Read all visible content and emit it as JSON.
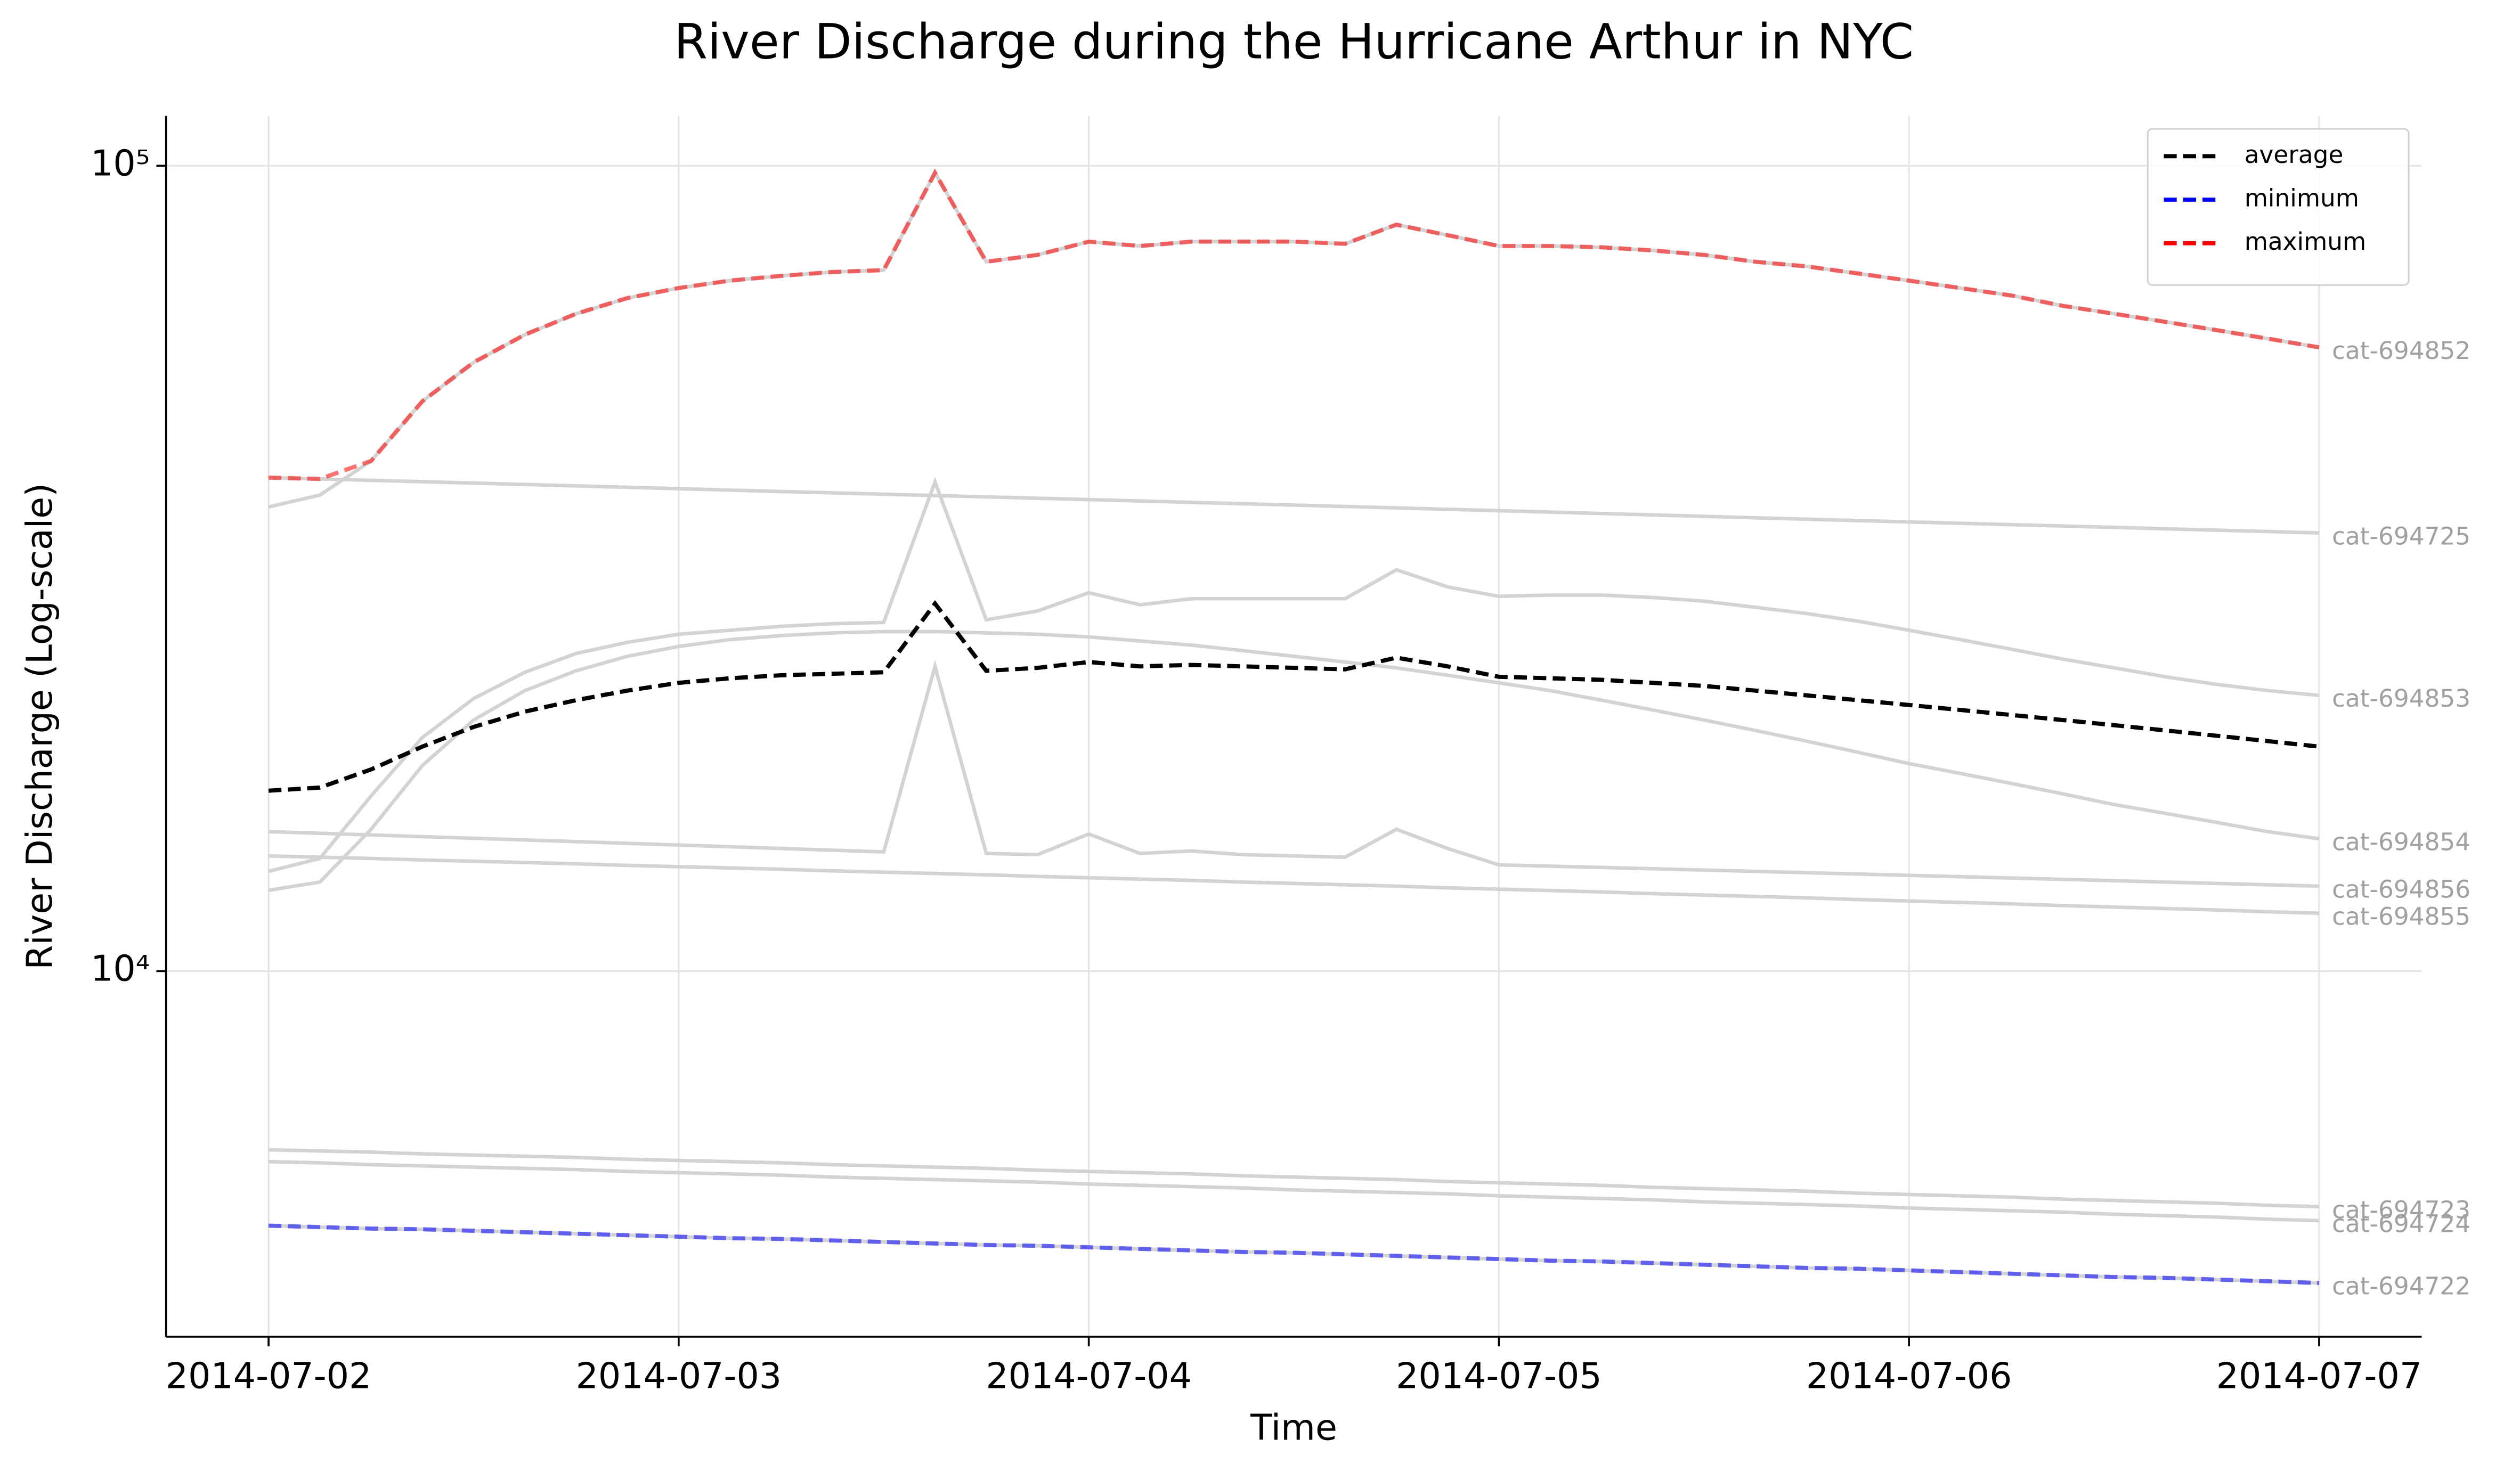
{
  "chart_data": {
    "type": "line",
    "title": "River Discharge during the Hurricane Arthur in NYC",
    "xlabel": "Time",
    "ylabel": "River Discharge (Log-scale)",
    "log_y": true,
    "grid": true,
    "legend": "upper right",
    "xlim": [
      "2014-07-01T18:00",
      "2014-07-07T06:00"
    ],
    "xticks": [
      "2014-07-02",
      "2014-07-03",
      "2014-07-04",
      "2014-07-05",
      "2014-07-06",
      "2014-07-07"
    ],
    "ylim": [
      3516,
      115300
    ],
    "yticks": [
      {
        "value": 10000,
        "label": "10⁴"
      },
      {
        "value": 100000,
        "label": "10⁵"
      }
    ],
    "x": [
      "2014-07-02T00:00",
      "2014-07-02T03:00",
      "2014-07-02T06:00",
      "2014-07-02T09:00",
      "2014-07-02T12:00",
      "2014-07-02T15:00",
      "2014-07-02T18:00",
      "2014-07-02T21:00",
      "2014-07-03T00:00",
      "2014-07-03T03:00",
      "2014-07-03T06:00",
      "2014-07-03T09:00",
      "2014-07-03T12:00",
      "2014-07-03T15:00",
      "2014-07-03T18:00",
      "2014-07-03T21:00",
      "2014-07-04T00:00",
      "2014-07-04T03:00",
      "2014-07-04T06:00",
      "2014-07-04T09:00",
      "2014-07-04T12:00",
      "2014-07-04T15:00",
      "2014-07-04T18:00",
      "2014-07-04T21:00",
      "2014-07-05T00:00",
      "2014-07-05T03:00",
      "2014-07-05T06:00",
      "2014-07-05T09:00",
      "2014-07-05T12:00",
      "2014-07-05T15:00",
      "2014-07-05T18:00",
      "2014-07-05T21:00",
      "2014-07-06T00:00",
      "2014-07-06T03:00",
      "2014-07-06T06:00",
      "2014-07-06T09:00",
      "2014-07-06T12:00",
      "2014-07-06T15:00",
      "2014-07-06T18:00",
      "2014-07-06T21:00",
      "2014-07-07T00:00"
    ],
    "series": [
      {
        "name": "cat-694852",
        "color": "#d3d3d3",
        "style": "solid",
        "values": [
          37700,
          39000,
          43000,
          51000,
          57000,
          61700,
          65500,
          68500,
          70500,
          72000,
          73000,
          73800,
          74200,
          98000,
          76000,
          77500,
          80500,
          79500,
          80500,
          80500,
          80500,
          80000,
          84500,
          82000,
          79500,
          79500,
          79200,
          78500,
          77500,
          76000,
          75000,
          73500,
          72000,
          70500,
          69000,
          67000,
          65500,
          64000,
          62500,
          61000,
          59500
        ]
      },
      {
        "name": "cat-694725",
        "color": "#d3d3d3",
        "style": "solid",
        "values": [
          41000,
          40840,
          40680,
          40520,
          40360,
          40200,
          40040,
          39880,
          39720,
          39560,
          39400,
          39250,
          39100,
          38950,
          38800,
          38650,
          38500,
          38350,
          38200,
          38050,
          37900,
          37750,
          37600,
          37450,
          37300,
          37150,
          37000,
          36850,
          36700,
          36550,
          36400,
          36260,
          36120,
          35980,
          35840,
          35700,
          35560,
          35420,
          35280,
          35140,
          35000
        ]
      },
      {
        "name": "cat-694853",
        "color": "#d3d3d3",
        "style": "solid",
        "values": [
          13300,
          13800,
          16500,
          19500,
          21800,
          23500,
          24800,
          25600,
          26200,
          26500,
          26800,
          27000,
          27100,
          40500,
          27300,
          28000,
          29500,
          28500,
          29000,
          29000,
          29000,
          29000,
          31500,
          30000,
          29200,
          29300,
          29300,
          29100,
          28800,
          28300,
          27800,
          27200,
          26500,
          25800,
          25100,
          24400,
          23800,
          23200,
          22700,
          22300,
          22000
        ]
      },
      {
        "name": "cat-694854",
        "color": "#d3d3d3",
        "style": "solid",
        "values": [
          12600,
          12900,
          15000,
          18000,
          20500,
          22300,
          23600,
          24600,
          25300,
          25800,
          26100,
          26300,
          26400,
          26400,
          26300,
          26200,
          26000,
          25700,
          25400,
          25000,
          24600,
          24200,
          23800,
          23300,
          22800,
          22300,
          21700,
          21100,
          20500,
          19900,
          19300,
          18700,
          18100,
          17600,
          17100,
          16600,
          16100,
          15700,
          15300,
          14900,
          14600
        ]
      },
      {
        "name": "cat-694856",
        "color": "#d3d3d3",
        "style": "solid",
        "values": [
          14900,
          14830,
          14760,
          14690,
          14620,
          14550,
          14480,
          14410,
          14340,
          14270,
          14200,
          14130,
          14060,
          23900,
          14000,
          13950,
          14800,
          14000,
          14100,
          13950,
          13900,
          13850,
          15000,
          14200,
          13550,
          13500,
          13450,
          13400,
          13350,
          13300,
          13250,
          13200,
          13150,
          13100,
          13050,
          13000,
          12950,
          12900,
          12850,
          12800,
          12750
        ]
      },
      {
        "name": "cat-694855",
        "color": "#d3d3d3",
        "style": "solid",
        "values": [
          13900,
          13850,
          13800,
          13740,
          13690,
          13640,
          13590,
          13530,
          13480,
          13430,
          13380,
          13320,
          13270,
          13220,
          13170,
          13110,
          13060,
          13010,
          12960,
          12900,
          12850,
          12800,
          12750,
          12690,
          12640,
          12590,
          12540,
          12480,
          12430,
          12380,
          12330,
          12270,
          12220,
          12170,
          12120,
          12060,
          12010,
          11960,
          11910,
          11850,
          11800
        ]
      },
      {
        "name": "cat-694723",
        "color": "#d3d3d3",
        "style": "solid",
        "values": [
          6000,
          5980,
          5960,
          5930,
          5910,
          5890,
          5870,
          5840,
          5820,
          5800,
          5780,
          5750,
          5730,
          5710,
          5690,
          5660,
          5640,
          5620,
          5600,
          5570,
          5550,
          5530,
          5510,
          5480,
          5460,
          5440,
          5420,
          5390,
          5370,
          5350,
          5330,
          5300,
          5280,
          5260,
          5240,
          5210,
          5190,
          5170,
          5150,
          5120,
          5100
        ]
      },
      {
        "name": "cat-694724",
        "color": "#d3d3d3",
        "style": "solid",
        "values": [
          5800,
          5780,
          5750,
          5730,
          5710,
          5690,
          5670,
          5640,
          5620,
          5600,
          5580,
          5550,
          5530,
          5510,
          5490,
          5470,
          5440,
          5420,
          5400,
          5380,
          5350,
          5330,
          5310,
          5290,
          5260,
          5240,
          5220,
          5200,
          5170,
          5150,
          5130,
          5110,
          5080,
          5060,
          5040,
          5020,
          4990,
          4970,
          4950,
          4920,
          4900
        ]
      },
      {
        "name": "cat-694722",
        "color": "#d3d3d3",
        "style": "solid",
        "values": [
          4830,
          4810,
          4790,
          4780,
          4760,
          4740,
          4720,
          4700,
          4680,
          4660,
          4650,
          4630,
          4610,
          4590,
          4570,
          4560,
          4540,
          4520,
          4500,
          4480,
          4470,
          4450,
          4430,
          4410,
          4390,
          4370,
          4360,
          4340,
          4320,
          4300,
          4280,
          4270,
          4250,
          4230,
          4210,
          4190,
          4170,
          4160,
          4140,
          4120,
          4100
        ]
      },
      {
        "name": "average",
        "color": "#000000",
        "style": "dashed",
        "values": [
          16750,
          16900,
          17800,
          19000,
          20100,
          21000,
          21700,
          22300,
          22800,
          23100,
          23300,
          23400,
          23500,
          28600,
          23600,
          23800,
          24200,
          23900,
          24000,
          23900,
          23800,
          23700,
          24500,
          23900,
          23200,
          23100,
          23000,
          22800,
          22600,
          22300,
          22000,
          21700,
          21400,
          21100,
          20800,
          20500,
          20200,
          19900,
          19600,
          19300,
          19000
        ]
      },
      {
        "name": "minimum",
        "color": "#0000ff",
        "style": "dashed",
        "values": [
          4830,
          4810,
          4790,
          4780,
          4760,
          4740,
          4720,
          4700,
          4680,
          4660,
          4650,
          4630,
          4610,
          4590,
          4570,
          4560,
          4540,
          4520,
          4500,
          4480,
          4470,
          4450,
          4430,
          4410,
          4390,
          4370,
          4360,
          4340,
          4320,
          4300,
          4280,
          4270,
          4250,
          4230,
          4210,
          4190,
          4170,
          4160,
          4140,
          4120,
          4100
        ]
      },
      {
        "name": "maximum",
        "color": "#ff0000",
        "style": "dashed",
        "values": [
          41000,
          40840,
          43000,
          51000,
          57000,
          61700,
          65500,
          68500,
          70500,
          72000,
          73000,
          73800,
          74200,
          98000,
          76000,
          77500,
          80500,
          79500,
          80500,
          80500,
          80500,
          80000,
          84500,
          82000,
          79500,
          79500,
          79200,
          78500,
          77500,
          76000,
          75000,
          73500,
          72000,
          70500,
          69000,
          67000,
          65500,
          64000,
          62500,
          61000,
          59500
        ]
      }
    ]
  }
}
